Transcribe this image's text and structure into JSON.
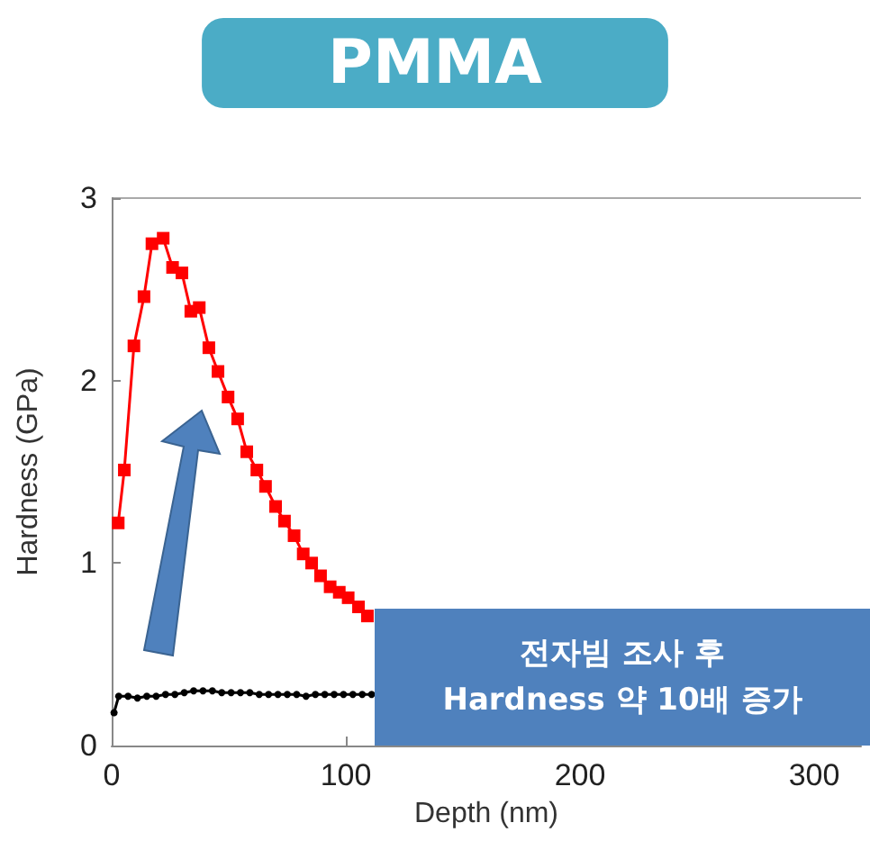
{
  "chart_data": {
    "type": "line",
    "title": "PMMA",
    "xlabel": "Depth (nm)",
    "ylabel": "Hardness (GPa)",
    "xlim": [
      0,
      320
    ],
    "ylim": [
      0,
      3
    ],
    "xticks": [
      0,
      100,
      200,
      300
    ],
    "yticks": [
      0,
      1,
      2,
      3
    ],
    "grid": false,
    "line_style": "solid",
    "series": [
      {
        "color": "#ff0000",
        "marker": "square",
        "x": [
          2.8,
          5.4,
          9.5,
          13.8,
          17.2,
          22,
          26,
          30,
          33.8,
          37.4,
          41.5,
          45.4,
          49.7,
          53.8,
          57.7,
          62,
          65.7,
          70,
          73.8,
          77.9,
          81.8,
          85.4,
          89.2,
          93.3,
          97.2,
          101,
          105.4,
          109.2
        ],
        "values": [
          1.22,
          1.51,
          2.19,
          2.46,
          2.75,
          2.78,
          2.62,
          2.59,
          2.38,
          2.4,
          2.18,
          2.05,
          1.91,
          1.79,
          1.61,
          1.51,
          1.42,
          1.31,
          1.23,
          1.15,
          1.05,
          1.0,
          0.93,
          0.87,
          0.84,
          0.81,
          0.76,
          0.71
        ]
      },
      {
        "color": "#000000",
        "marker": "circle",
        "x": [
          1,
          3,
          7,
          11,
          15,
          19,
          23,
          27,
          31,
          35,
          39,
          43,
          47,
          51,
          55,
          59,
          63,
          67,
          71,
          75,
          79,
          83,
          87,
          91,
          95,
          99,
          103,
          107,
          111
        ],
        "values": [
          0.18,
          0.27,
          0.27,
          0.26,
          0.27,
          0.27,
          0.28,
          0.28,
          0.29,
          0.3,
          0.3,
          0.3,
          0.29,
          0.29,
          0.29,
          0.29,
          0.28,
          0.28,
          0.28,
          0.28,
          0.28,
          0.27,
          0.28,
          0.28,
          0.28,
          0.28,
          0.28,
          0.28,
          0.28
        ]
      }
    ],
    "annotations": [
      "전자빔 조사 후\nHardness 약 10배 증가"
    ]
  }
}
